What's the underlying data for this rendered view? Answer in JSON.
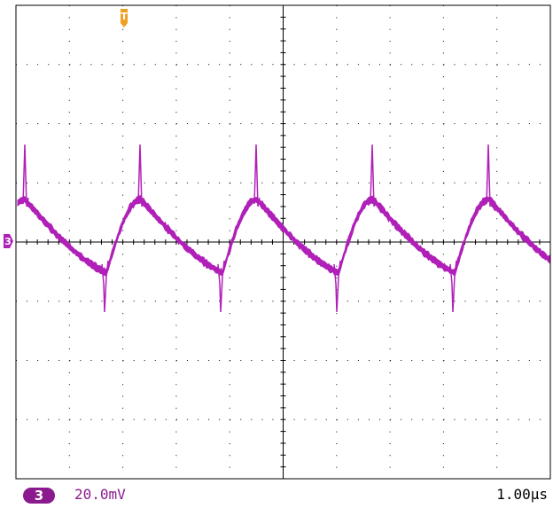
{
  "scope": {
    "divisions_x": 10,
    "divisions_y": 8,
    "grid_color": "#000000",
    "background_color": "#ffffff"
  },
  "trigger": {
    "label": "T",
    "color": "#f0a020"
  },
  "channel": {
    "number": "3",
    "marker_label": "3",
    "scale": "20.0mV",
    "color": "#8a1a8e",
    "trace_color": "#b020b8"
  },
  "timebase": {
    "scale": "1.00µs"
  }
}
